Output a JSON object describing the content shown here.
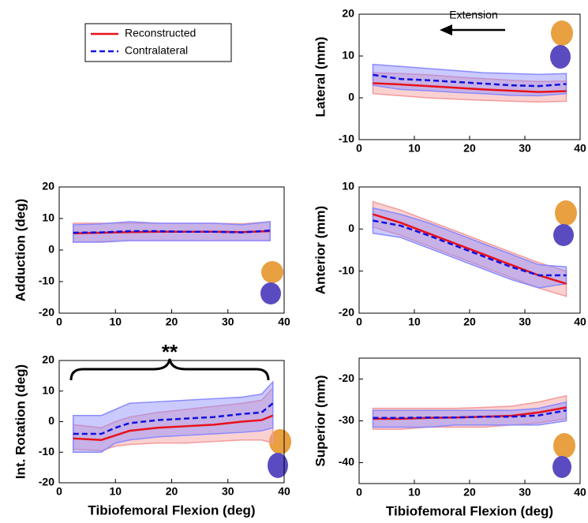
{
  "chart_data": [
    {
      "type": "line",
      "ylabel": "Lateral (mm)",
      "annotation": "Extension",
      "xlim": [
        0,
        40
      ],
      "xticks": [
        0,
        10,
        20,
        30,
        40
      ],
      "ylim": [
        -10,
        20
      ],
      "yticks": [
        -10,
        0,
        10,
        20
      ],
      "x": [
        2.5,
        7.5,
        12.5,
        17.5,
        22.5,
        27.5,
        32.5,
        37.5
      ],
      "series": [
        {
          "name": "Reconstructed",
          "color": "#e8101a",
          "band_color": "#f49a9a",
          "values": [
            3.5,
            3.2,
            2.8,
            2.4,
            2.0,
            1.7,
            1.4,
            1.6
          ],
          "band_lower": [
            1,
            0.5,
            0,
            -0.3,
            -0.6,
            -0.8,
            -1,
            -0.8
          ],
          "band_upper": [
            6,
            5.8,
            5.5,
            5.0,
            4.6,
            4.2,
            3.9,
            4.0
          ]
        },
        {
          "name": "Contralateral",
          "color": "#1010e0",
          "band_color": "#8a8aff",
          "values": [
            5.5,
            4.5,
            4.2,
            3.8,
            3.4,
            3.0,
            2.8,
            3.3
          ],
          "band_lower": [
            3,
            2,
            1.7,
            1.3,
            1,
            0.6,
            0.5,
            1
          ],
          "band_upper": [
            8,
            7.5,
            7,
            6.5,
            6,
            5.8,
            5.6,
            5.8
          ]
        }
      ]
    },
    {
      "type": "line",
      "ylabel": "Adduction (deg)",
      "xlim": [
        0,
        40
      ],
      "xticks": [
        0,
        10,
        20,
        30,
        40
      ],
      "ylim": [
        -20,
        20
      ],
      "yticks": [
        -20,
        -10,
        0,
        10,
        20
      ],
      "x": [
        2.5,
        7.5,
        12.5,
        17.5,
        22.5,
        27.5,
        32.5,
        37.5
      ],
      "series": [
        {
          "color": "#e8101a",
          "band_color": "#f49a9a",
          "values": [
            5.3,
            5.5,
            5.7,
            5.8,
            5.8,
            5.8,
            5.7,
            6.0
          ],
          "band_lower": [
            2.5,
            2.7,
            3,
            3,
            3,
            3,
            3,
            3
          ],
          "band_upper": [
            8.5,
            8.5,
            8.5,
            8.5,
            8.5,
            8.5,
            8.3,
            9
          ]
        },
        {
          "color": "#1010e0",
          "band_color": "#8a8aff",
          "values": [
            5.5,
            5.6,
            6,
            6,
            5.8,
            5.8,
            5.6,
            6.2
          ],
          "band_lower": [
            2.5,
            2.5,
            3,
            3,
            3,
            3,
            3,
            3
          ],
          "band_upper": [
            8,
            8.3,
            9,
            8.5,
            8.5,
            8.5,
            8,
            9
          ]
        }
      ]
    },
    {
      "type": "line",
      "ylabel": "Anterior (mm)",
      "xlim": [
        0,
        40
      ],
      "xticks": [
        0,
        10,
        20,
        30,
        40
      ],
      "ylim": [
        -20,
        10
      ],
      "yticks": [
        -20,
        -10,
        0,
        10
      ],
      "x": [
        2.5,
        7.5,
        12.5,
        17.5,
        22.5,
        27.5,
        32.5,
        37.5
      ],
      "series": [
        {
          "color": "#e8101a",
          "band_color": "#f49a9a",
          "values": [
            3.5,
            1.5,
            -1,
            -3.5,
            -6,
            -8.5,
            -11,
            -13
          ],
          "band_lower": [
            0.5,
            -1.5,
            -4,
            -6.5,
            -9,
            -11.5,
            -14,
            -16
          ],
          "band_upper": [
            6.5,
            4.5,
            2,
            -0.5,
            -3,
            -5.5,
            -8,
            -10
          ]
        },
        {
          "color": "#1010e0",
          "band_color": "#8a8aff",
          "values": [
            2,
            0.8,
            -1.5,
            -4,
            -6.5,
            -9,
            -11,
            -11
          ],
          "band_lower": [
            -1,
            -2,
            -4.5,
            -7,
            -9.5,
            -12,
            -14,
            -13
          ],
          "band_upper": [
            5,
            3.5,
            1.5,
            -1,
            -3.5,
            -6,
            -8.5,
            -9
          ]
        }
      ]
    },
    {
      "type": "line",
      "ylabel": "Int. Rotation (deg)",
      "xlabel": "Tibiofemoral Flexion (deg)",
      "annotation": "**",
      "xlim": [
        0,
        40
      ],
      "xticks": [
        0,
        10,
        20,
        30,
        40
      ],
      "ylim": [
        -20,
        20
      ],
      "yticks": [
        -20,
        -10,
        0,
        10,
        20
      ],
      "x": [
        2.5,
        7.5,
        10,
        12.5,
        17.5,
        22.5,
        27.5,
        32.5,
        36,
        38
      ],
      "series": [
        {
          "color": "#e8101a",
          "band_color": "#f49a9a",
          "values": [
            -5.5,
            -6,
            -4.5,
            -3,
            -2,
            -1.5,
            -1,
            0,
            0.5,
            2
          ],
          "band_lower": [
            -9,
            -9.5,
            -8,
            -7.5,
            -7,
            -7,
            -6.5,
            -6,
            -6,
            -7
          ],
          "band_upper": [
            -1,
            -2,
            0,
            1.5,
            3,
            4,
            5,
            6,
            7,
            11
          ]
        },
        {
          "color": "#1010e0",
          "band_color": "#8a8aff",
          "values": [
            -4,
            -4,
            -2,
            -0.5,
            0.5,
            1,
            1.5,
            2.5,
            3,
            6
          ],
          "band_lower": [
            -10,
            -10,
            -7,
            -6,
            -5,
            -4.5,
            -4,
            -3.5,
            -3,
            -2
          ],
          "band_upper": [
            2,
            2,
            4,
            6,
            6.5,
            7,
            7.5,
            8,
            9,
            13
          ]
        }
      ]
    },
    {
      "type": "line",
      "ylabel": "Superior (mm)",
      "xlabel": "Tibiofemoral Flexion (deg)",
      "xlim": [
        0,
        40
      ],
      "xticks": [
        0,
        10,
        20,
        30,
        40
      ],
      "ylim": [
        -45,
        -15
      ],
      "yticks": [
        -40,
        -30,
        -20
      ],
      "x": [
        2.5,
        7.5,
        12.5,
        17.5,
        22.5,
        27.5,
        32.5,
        37.5
      ],
      "series": [
        {
          "color": "#e8101a",
          "band_color": "#f49a9a",
          "values": [
            -29.5,
            -29.5,
            -29.3,
            -29.2,
            -29,
            -28.8,
            -28,
            -26.8
          ],
          "band_lower": [
            -32,
            -32,
            -31.5,
            -31.5,
            -31.5,
            -31,
            -30.5,
            -29.5
          ],
          "band_upper": [
            -27,
            -27,
            -27,
            -27,
            -26.8,
            -26.5,
            -25.5,
            -24
          ]
        },
        {
          "color": "#1010e0",
          "band_color": "#8a8aff",
          "values": [
            -29.3,
            -29.3,
            -29.2,
            -29.2,
            -29,
            -29,
            -28.7,
            -27.5
          ],
          "band_lower": [
            -31.5,
            -31.5,
            -31.5,
            -31,
            -31,
            -31,
            -31,
            -30
          ],
          "band_upper": [
            -27.5,
            -27.5,
            -27.5,
            -27.5,
            -27.5,
            -27.5,
            -27,
            -25.5
          ]
        }
      ]
    }
  ]
}
